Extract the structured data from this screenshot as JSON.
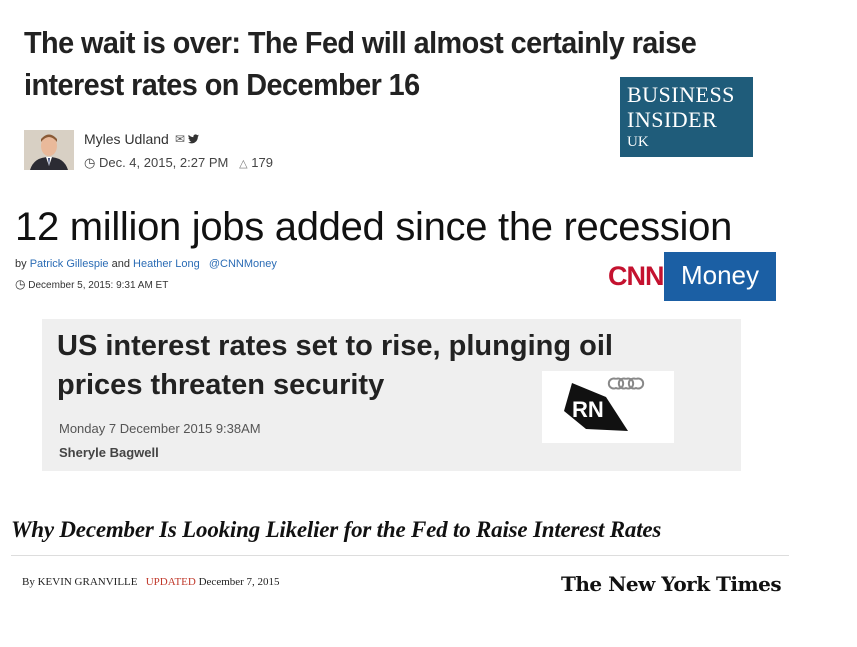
{
  "business_insider": {
    "headline_line1": "The wait is over: The Fed will almost certainly raise",
    "headline_line2": "interest rates on December 16",
    "author": "Myles Udland",
    "mail_icon": "✉",
    "twitter_icon": "🐦",
    "clock_icon": "◷",
    "date": "Dec. 4, 2015, 2:27 PM",
    "flame_icon": "△",
    "count": "179",
    "logo_line1": "BUSINESS",
    "logo_line2": "INSIDER",
    "logo_line3": "UK",
    "logo_color": "#1f5c7a"
  },
  "cnn": {
    "headline": "12 million jobs added since the recession",
    "by": "by",
    "author1": "Patrick Gillespie",
    "and": "and",
    "author2": "Heather Long",
    "handle": "@CNNMoney",
    "clock_icon": "◷",
    "date": "December 5, 2015: 9:31 AM ET",
    "logo_cnn": "CNN",
    "logo_money": "Money",
    "logo_color": "#1b5fa4"
  },
  "rn": {
    "headline_line1": "US interest rates set to rise, plunging oil",
    "headline_line2": "prices threaten security",
    "date": "Monday 7 December 2015 9:38AM",
    "author": "Sheryle Bagwell",
    "logo_text": "RN"
  },
  "nyt": {
    "headline": "Why December Is Looking Likelier for the Fed to Raise Interest Rates",
    "by": "By KEVIN GRANVILLE",
    "updated": "UPDATED",
    "date": "December 7, 2015",
    "logo": "The New York Times"
  }
}
